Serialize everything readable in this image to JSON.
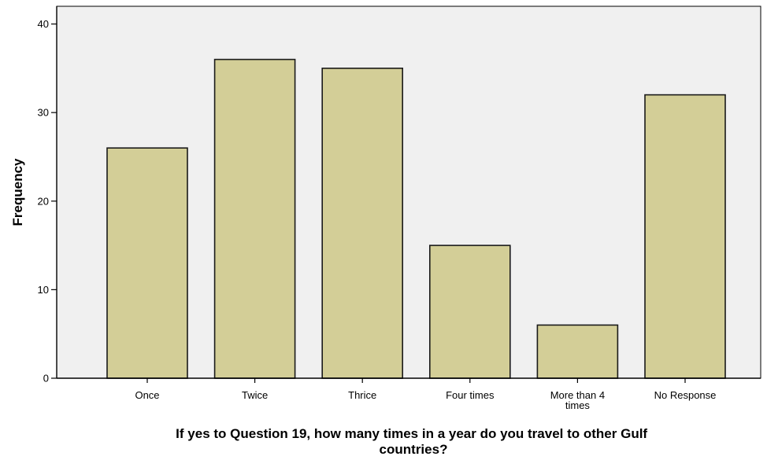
{
  "chart_data": {
    "type": "bar",
    "categories": [
      "Once",
      "Twice",
      "Thrice",
      "Four times",
      "More than 4 times",
      "No Response"
    ],
    "category_label_lines": [
      [
        "Once"
      ],
      [
        "Twice"
      ],
      [
        "Thrice"
      ],
      [
        "Four times"
      ],
      [
        "More than 4",
        "times"
      ],
      [
        "No Response"
      ]
    ],
    "values": [
      26,
      36,
      35,
      15,
      6,
      32
    ],
    "title": "",
    "xlabel": "If yes to Question 19, how many times in a year do you travel to other Gulf countries?",
    "xlabel_lines": [
      "If yes to Question 19, how many times in a year do you travel to other Gulf",
      "countries?"
    ],
    "ylabel": "Frequency",
    "ylim": [
      0,
      42
    ],
    "yticks": [
      0,
      10,
      20,
      30,
      40
    ],
    "grid": false,
    "legend": "none",
    "colors": {
      "plot_background": "#f0f0f0",
      "bar_fill": "#d3ce97",
      "bar_stroke": "#1a1a1a",
      "axis": "#000000"
    }
  }
}
